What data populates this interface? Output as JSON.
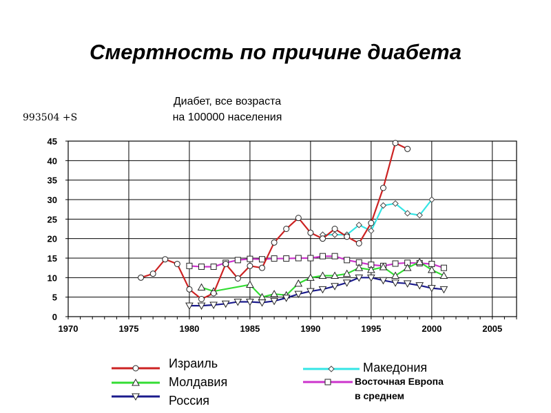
{
  "slide": {
    "title": "Смертность по причине диабета",
    "code_label": "993504 +S"
  },
  "chart_data": {
    "type": "line",
    "title": "Диабет, все возраста\nна 100000 населения",
    "title_lines": [
      "Диабет, все возраста",
      "на 100000 населения"
    ],
    "xlabel": "",
    "ylabel": "",
    "xlim": [
      1970,
      2007
    ],
    "ylim": [
      0,
      45
    ],
    "xticks": [
      1970,
      1975,
      1980,
      1985,
      1990,
      1995,
      2000,
      2005
    ],
    "yticks": [
      0,
      5,
      10,
      15,
      20,
      25,
      30,
      35,
      40,
      45
    ],
    "grid": true,
    "legend_position": "bottom",
    "series": [
      {
        "name": "Израиль",
        "color": "#cc2222",
        "marker": "circle",
        "points": [
          [
            1976,
            10
          ],
          [
            1977,
            11
          ],
          [
            1978,
            14.7
          ],
          [
            1979,
            13.5
          ],
          [
            1980,
            7
          ],
          [
            1981,
            4.5
          ],
          [
            1982,
            6
          ],
          [
            1983,
            13.5
          ],
          [
            1984,
            9.8
          ],
          [
            1985,
            13
          ],
          [
            1986,
            12.5
          ],
          [
            1987,
            19
          ],
          [
            1988,
            22.5
          ],
          [
            1989,
            25.3
          ],
          [
            1990,
            21.5
          ],
          [
            1991,
            20
          ],
          [
            1992,
            22.5
          ],
          [
            1993,
            20.5
          ],
          [
            1994,
            18.8
          ],
          [
            1995,
            24
          ],
          [
            1996,
            33
          ],
          [
            1997,
            44.5
          ],
          [
            1998,
            43
          ]
        ]
      },
      {
        "name": "Македония",
        "color": "#33e5e5",
        "marker": "diamond",
        "points": [
          [
            1991,
            21
          ],
          [
            1992,
            21
          ],
          [
            1993,
            21
          ],
          [
            1994,
            23.5
          ],
          [
            1995,
            22
          ],
          [
            1996,
            28.5
          ],
          [
            1997,
            29
          ],
          [
            1998,
            26.5
          ],
          [
            1999,
            26
          ],
          [
            2000,
            30
          ]
        ]
      },
      {
        "name": "Молдавия",
        "color": "#33dd33",
        "marker": "triangle-up",
        "points": [
          [
            1981,
            7.5
          ],
          [
            1982,
            6.5
          ],
          [
            1985,
            8.2
          ],
          [
            1986,
            5
          ],
          [
            1987,
            5.8
          ],
          [
            1988,
            5.5
          ],
          [
            1989,
            8.5
          ],
          [
            1990,
            10
          ],
          [
            1991,
            10.5
          ],
          [
            1992,
            10.5
          ],
          [
            1993,
            11
          ],
          [
            1994,
            12.5
          ],
          [
            1995,
            12
          ],
          [
            1996,
            12.7
          ],
          [
            1997,
            10.5
          ],
          [
            1998,
            12.5
          ],
          [
            1999,
            14
          ],
          [
            2000,
            12
          ],
          [
            2001,
            10.5
          ]
        ]
      },
      {
        "name": "Восточная Европа в среднем",
        "name_lines": [
          "Восточная Европа",
          "в среднем"
        ],
        "color": "#cc33cc",
        "marker": "square",
        "points": [
          [
            1980,
            13
          ],
          [
            1981,
            12.8
          ],
          [
            1982,
            12.8
          ],
          [
            1983,
            13.8
          ],
          [
            1984,
            14.5
          ],
          [
            1985,
            14.8
          ],
          [
            1986,
            14.7
          ],
          [
            1987,
            14.9
          ],
          [
            1988,
            14.9
          ],
          [
            1989,
            15
          ],
          [
            1990,
            15
          ],
          [
            1991,
            15.5
          ],
          [
            1992,
            15.5
          ],
          [
            1993,
            14.5
          ],
          [
            1994,
            13.9
          ],
          [
            1995,
            13.3
          ],
          [
            1996,
            13
          ],
          [
            1997,
            13.6
          ],
          [
            1998,
            13.8
          ],
          [
            1999,
            13.7
          ],
          [
            2000,
            13.5
          ],
          [
            2001,
            12.5
          ]
        ]
      },
      {
        "name": "Россия",
        "color": "#1a1a8c",
        "marker": "triangle-down",
        "points": [
          [
            1980,
            2.8
          ],
          [
            1981,
            2.8
          ],
          [
            1982,
            3
          ],
          [
            1983,
            3.3
          ],
          [
            1984,
            3.8
          ],
          [
            1985,
            3.8
          ],
          [
            1986,
            3.6
          ],
          [
            1987,
            4
          ],
          [
            1988,
            4.8
          ],
          [
            1989,
            5.8
          ],
          [
            1990,
            6.5
          ],
          [
            1991,
            7
          ],
          [
            1992,
            7.8
          ],
          [
            1993,
            8.7
          ],
          [
            1994,
            10
          ],
          [
            1995,
            10
          ],
          [
            1996,
            9.3
          ],
          [
            1997,
            8.7
          ],
          [
            1998,
            8.5
          ],
          [
            1999,
            8
          ],
          [
            2000,
            7.3
          ],
          [
            2001,
            7
          ]
        ]
      }
    ]
  }
}
